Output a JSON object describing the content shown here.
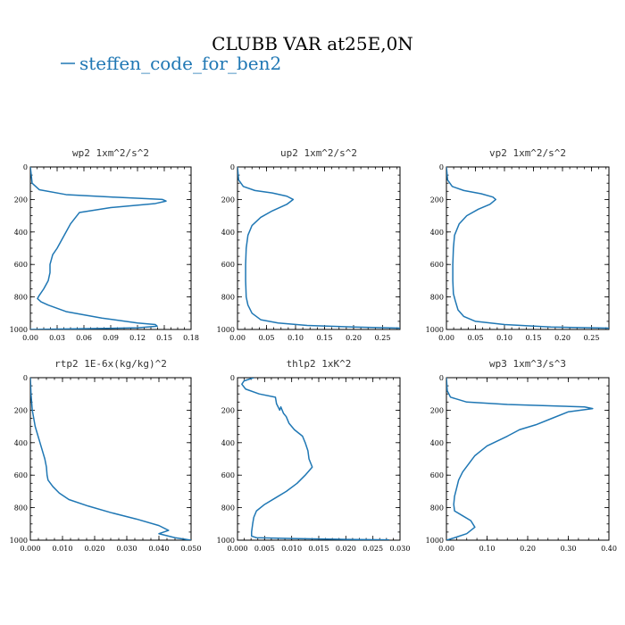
{
  "figure": {
    "title": "CLUBB VAR at25E,0N",
    "legend_label": "steffen_code_for_ben2",
    "series_color": "#1f77b4"
  },
  "chart_data": [
    {
      "type": "line",
      "title": "wp2  1xm^2/s^2",
      "xlim": [
        0,
        0.18
      ],
      "ylim": [
        1000,
        0
      ],
      "xticks": [
        0,
        0.03,
        0.06,
        0.09,
        0.12,
        0.15,
        0.18
      ],
      "xtick_labels": [
        "0.00",
        "0.03",
        "0.06",
        "0.09",
        "0.12",
        "0.15",
        "0.18"
      ],
      "yticks": [
        0,
        200,
        400,
        600,
        800,
        1000
      ],
      "ytick_labels": [
        "0",
        "200",
        "400",
        "600",
        "800",
        "1000"
      ],
      "series": [
        {
          "x": [
            0,
            0.002,
            0.01,
            0.04,
            0.09,
            0.13,
            0.148,
            0.152,
            0.14,
            0.09,
            0.055,
            0.045,
            0.035,
            0.03,
            0.025,
            0.022,
            0.022,
            0.02,
            0.015,
            0.01,
            0.008,
            0.012,
            0.02,
            0.04,
            0.08,
            0.12,
            0.14,
            0.142,
            0.12,
            0.06,
            0.0
          ],
          "y": [
            0,
            100,
            140,
            170,
            185,
            195,
            200,
            210,
            225,
            250,
            280,
            350,
            450,
            500,
            540,
            600,
            650,
            700,
            750,
            790,
            810,
            830,
            850,
            890,
            930,
            960,
            970,
            980,
            990,
            995,
            1000
          ]
        }
      ]
    },
    {
      "type": "line",
      "title": "up2  1xm^2/s^2",
      "xlim": [
        0,
        0.28
      ],
      "ylim": [
        1000,
        0
      ],
      "xticks": [
        0,
        0.05,
        0.1,
        0.15,
        0.2,
        0.25
      ],
      "xtick_labels": [
        "0.00",
        "0.05",
        "0.10",
        "0.15",
        "0.20",
        "0.25"
      ],
      "yticks": [
        0,
        200,
        400,
        600,
        800,
        1000
      ],
      "ytick_labels": [
        "0",
        "200",
        "400",
        "600",
        "800",
        "1000"
      ],
      "series": [
        {
          "x": [
            0,
            0.002,
            0.01,
            0.03,
            0.06,
            0.085,
            0.096,
            0.085,
            0.06,
            0.04,
            0.025,
            0.018,
            0.015,
            0.014,
            0.014,
            0.015,
            0.018,
            0.025,
            0.04,
            0.07,
            0.12,
            0.2,
            0.28
          ],
          "y": [
            0,
            80,
            120,
            145,
            160,
            180,
            200,
            230,
            270,
            310,
            360,
            420,
            500,
            600,
            700,
            800,
            850,
            900,
            940,
            960,
            975,
            985,
            992
          ]
        }
      ]
    },
    {
      "type": "line",
      "title": "vp2  1xm^2/s^2",
      "xlim": [
        0,
        0.28
      ],
      "ylim": [
        1000,
        0
      ],
      "xticks": [
        0,
        0.05,
        0.1,
        0.15,
        0.2,
        0.25
      ],
      "xtick_labels": [
        "0.00",
        "0.05",
        "0.10",
        "0.15",
        "0.20",
        "0.25"
      ],
      "yticks": [
        0,
        200,
        400,
        600,
        800,
        1000
      ],
      "ytick_labels": [
        "0",
        "200",
        "400",
        "600",
        "800",
        "1000"
      ],
      "series": [
        {
          "x": [
            0,
            0.002,
            0.01,
            0.03,
            0.06,
            0.08,
            0.085,
            0.075,
            0.055,
            0.035,
            0.022,
            0.014,
            0.012,
            0.011,
            0.011,
            0.012,
            0.015,
            0.02,
            0.03,
            0.05,
            0.1,
            0.18,
            0.28
          ],
          "y": [
            0,
            80,
            120,
            145,
            165,
            185,
            200,
            230,
            260,
            300,
            350,
            420,
            500,
            600,
            700,
            780,
            820,
            880,
            920,
            950,
            970,
            985,
            992
          ]
        }
      ]
    },
    {
      "type": "line",
      "title": "rtp2  1E-6x(kg/kg)^2",
      "xlim": [
        0,
        0.05
      ],
      "ylim": [
        1000,
        0
      ],
      "xticks": [
        0,
        0.01,
        0.02,
        0.03,
        0.04,
        0.05
      ],
      "xtick_labels": [
        "0.000",
        "0.010",
        "0.020",
        "0.030",
        "0.040",
        "0.050"
      ],
      "yticks": [
        0,
        200,
        400,
        600,
        800,
        1000
      ],
      "ytick_labels": [
        "0",
        "200",
        "400",
        "600",
        "800",
        "1000"
      ],
      "series": [
        {
          "x": [
            0,
            0.0002,
            0.0006,
            0.0015,
            0.003,
            0.0045,
            0.005,
            0.0052,
            0.0055,
            0.007,
            0.009,
            0.012,
            0.018,
            0.025,
            0.033,
            0.04,
            0.043,
            0.04,
            0.045,
            0.05
          ],
          "y": [
            0,
            100,
            200,
            300,
            400,
            500,
            550,
            600,
            630,
            670,
            710,
            750,
            790,
            830,
            870,
            910,
            940,
            960,
            985,
            1000
          ]
        }
      ]
    },
    {
      "type": "line",
      "title": "thlp2  1xK^2",
      "xlim": [
        0,
        0.03
      ],
      "ylim": [
        1000,
        0
      ],
      "xticks": [
        0,
        0.005,
        0.01,
        0.015,
        0.02,
        0.025,
        0.03
      ],
      "xtick_labels": [
        "0.000",
        "0.005",
        "0.010",
        "0.015",
        "0.020",
        "0.025",
        "0.030"
      ],
      "yticks": [
        0,
        200,
        400,
        600,
        800,
        1000
      ],
      "ytick_labels": [
        "0",
        "200",
        "400",
        "600",
        "800",
        "1000"
      ],
      "series": [
        {
          "x": [
            0.003,
            0.0012,
            0.0008,
            0.0015,
            0.004,
            0.007,
            0.0072,
            0.0078,
            0.008,
            0.0085,
            0.009,
            0.0095,
            0.0105,
            0.012,
            0.0125,
            0.013,
            0.0132,
            0.0138,
            0.0125,
            0.011,
            0.009,
            0.007,
            0.005,
            0.0035,
            0.003,
            0.0028,
            0.0026,
            0.0026,
            0.0035,
            0.01,
            0.02,
            0.028
          ],
          "y": [
            0,
            20,
            40,
            70,
            100,
            120,
            160,
            200,
            180,
            220,
            240,
            280,
            320,
            360,
            400,
            450,
            500,
            550,
            600,
            650,
            700,
            740,
            780,
            820,
            860,
            900,
            950,
            975,
            985,
            990,
            995,
            998
          ]
        }
      ]
    },
    {
      "type": "line",
      "title": "wp3  1xm^3/s^3",
      "xlim": [
        0,
        0.4
      ],
      "ylim": [
        1000,
        0
      ],
      "xticks": [
        0,
        0.1,
        0.2,
        0.3,
        0.4
      ],
      "xtick_labels": [
        "0.00",
        "0.10",
        "0.20",
        "0.30",
        "0.40"
      ],
      "yticks": [
        0,
        200,
        400,
        600,
        800,
        1000
      ],
      "ytick_labels": [
        "0",
        "200",
        "400",
        "600",
        "800",
        "1000"
      ],
      "series": [
        {
          "x": [
            0,
            0.002,
            0.01,
            0.05,
            0.15,
            0.28,
            0.34,
            0.36,
            0.3,
            0.26,
            0.22,
            0.18,
            0.15,
            0.1,
            0.07,
            0.055,
            0.04,
            0.03,
            0.025,
            0.02,
            0.018,
            0.02,
            0.04,
            0.06,
            0.07,
            0.05,
            0.02,
            0
          ],
          "y": [
            0,
            80,
            120,
            150,
            165,
            175,
            180,
            190,
            210,
            250,
            290,
            320,
            360,
            420,
            480,
            530,
            580,
            630,
            680,
            730,
            780,
            820,
            850,
            880,
            920,
            960,
            985,
            1000
          ]
        }
      ]
    }
  ]
}
